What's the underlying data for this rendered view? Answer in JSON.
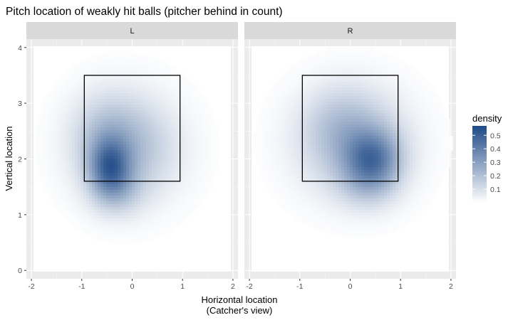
{
  "chart_data": {
    "type": "heatmap",
    "title": "Pitch location of weakly hit balls (pitcher behind in count)",
    "xlabel_lines": [
      "Horizontal location",
      "(Catcher's view)"
    ],
    "ylabel": "Vertical location",
    "xlim": [
      -2.1,
      2.1
    ],
    "ylim": [
      -0.15,
      4.15
    ],
    "x_ticks": [
      -2,
      -1,
      0,
      1,
      2
    ],
    "x_tick_labels": [
      "-2",
      "-1",
      "0",
      "1",
      "2"
    ],
    "y_ticks": [
      0,
      1,
      2,
      3,
      4
    ],
    "y_tick_labels": [
      "0",
      "1",
      "2",
      "3",
      "4"
    ],
    "grid": true,
    "strike_zone": {
      "x": [
        -0.95,
        0.95
      ],
      "y": [
        1.6,
        3.5
      ]
    },
    "legend": {
      "title": "density",
      "ticks": [
        0.1,
        0.2,
        0.3,
        0.4,
        0.5
      ],
      "tick_labels": [
        "0.1",
        "0.2",
        "0.3",
        "0.4",
        "0.5"
      ],
      "range": [
        0,
        0.57
      ],
      "position": "right"
    },
    "color_low": "#ffffff",
    "color_high": "#1f4a87",
    "panels": [
      {
        "label": "L",
        "peak_location": {
          "x": -0.45,
          "y": 1.85
        },
        "peak_density": 0.55,
        "components": [
          {
            "x": -0.45,
            "y": 1.85,
            "sx": 0.28,
            "sy": 0.35,
            "w": 0.33
          },
          {
            "x": -0.1,
            "y": 2.2,
            "sx": 0.7,
            "sy": 0.65,
            "w": 0.21
          },
          {
            "x": -0.55,
            "y": 2.5,
            "sx": 0.45,
            "sy": 0.5,
            "w": 0.08
          },
          {
            "x": -0.3,
            "y": 1.4,
            "sx": 0.35,
            "sy": 0.3,
            "w": 0.11
          }
        ]
      },
      {
        "label": "R",
        "peak_location": {
          "x": 0.45,
          "y": 2.0
        },
        "peak_density": 0.5,
        "components": [
          {
            "x": 0.45,
            "y": 2.0,
            "sx": 0.38,
            "sy": 0.35,
            "w": 0.3
          },
          {
            "x": 0.05,
            "y": 2.3,
            "sx": 0.75,
            "sy": 0.65,
            "w": 0.2
          },
          {
            "x": 0.35,
            "y": 1.5,
            "sx": 0.4,
            "sy": 0.3,
            "w": 0.1
          },
          {
            "x": -0.2,
            "y": 2.7,
            "sx": 0.5,
            "sy": 0.45,
            "w": 0.06
          }
        ]
      }
    ]
  }
}
